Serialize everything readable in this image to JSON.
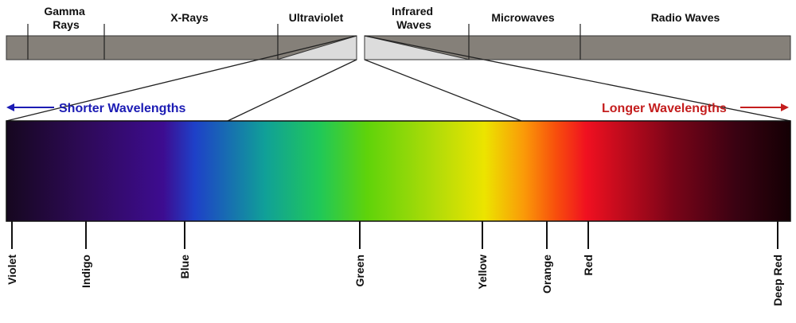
{
  "em_spectrum": {
    "bands": [
      {
        "label_lines": [
          "Gamma",
          "Rays"
        ]
      },
      {
        "label_lines": [
          "X-Rays"
        ]
      },
      {
        "label_lines": [
          "Ultraviolet"
        ]
      },
      {
        "label_lines": [
          "Infrared",
          "Waves"
        ]
      },
      {
        "label_lines": [
          "Microwaves"
        ]
      },
      {
        "label_lines": [
          "Radio Waves"
        ]
      }
    ],
    "bar_color": "#858079",
    "visible_window_color": "#dcdcdc"
  },
  "direction": {
    "shorter": {
      "label": "Shorter Wavelengths",
      "color": "#1c1cb4"
    },
    "longer": {
      "label": "Longer Wavelengths",
      "color": "#c41e1e"
    }
  },
  "visible_spectrum": {
    "colors": [
      {
        "name": "Violet",
        "swatch": "#16071f"
      },
      {
        "name": "Indigo",
        "swatch": "#3a0a74"
      },
      {
        "name": "Blue",
        "swatch": "#1c3ad0"
      },
      {
        "name": "Green",
        "swatch": "#5fd30a"
      },
      {
        "name": "Yellow",
        "swatch": "#ece400"
      },
      {
        "name": "Orange",
        "swatch": "#fa6a0a"
      },
      {
        "name": "Red",
        "swatch": "#f01020"
      },
      {
        "name": "Deep Red",
        "swatch": "#140004"
      }
    ]
  }
}
